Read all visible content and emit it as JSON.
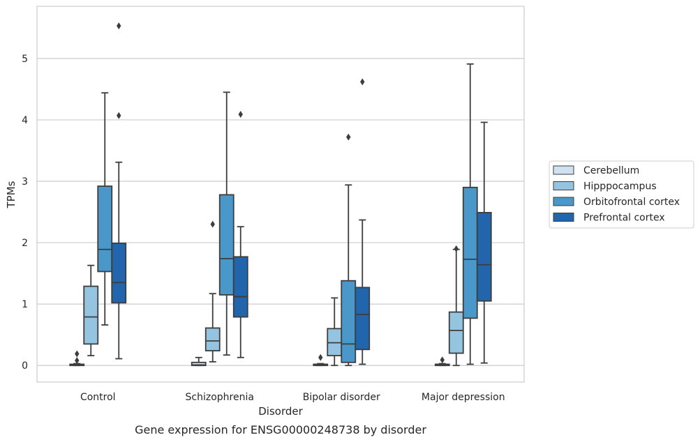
{
  "chart_data": {
    "type": "box",
    "caption": "Gene expression for ENSG00000248738 by disorder",
    "xlabel": "Disorder",
    "ylabel": "TPMs",
    "ylim": [
      -0.27,
      5.85
    ],
    "yticks": [
      0,
      1,
      2,
      3,
      4,
      5
    ],
    "grid": true,
    "legend_position": "right",
    "categories": [
      "Control",
      "Schizophrenia",
      "Bipolar disorder",
      "Major depression"
    ],
    "series": [
      {
        "name": "Cerebellum",
        "color": "#d0e1f2",
        "boxes": [
          {
            "q1": 0.0,
            "median": 0.01,
            "q3": 0.02,
            "whisker_low": 0.0,
            "whisker_high": 0.03,
            "outliers": [
              0.19,
              0.08
            ]
          },
          {
            "q1": 0.0,
            "median": 0.01,
            "q3": 0.05,
            "whisker_low": 0.0,
            "whisker_high": 0.13,
            "outliers": []
          },
          {
            "q1": 0.0,
            "median": 0.01,
            "q3": 0.02,
            "whisker_low": 0.0,
            "whisker_high": 0.03,
            "outliers": [
              0.13
            ]
          },
          {
            "q1": 0.0,
            "median": 0.01,
            "q3": 0.02,
            "whisker_low": 0.0,
            "whisker_high": 0.03,
            "outliers": [
              0.09
            ]
          }
        ]
      },
      {
        "name": "Hipppocampus",
        "color": "#94c4df",
        "boxes": [
          {
            "q1": 0.35,
            "median": 0.79,
            "q3": 1.29,
            "whisker_low": 0.16,
            "whisker_high": 1.63,
            "outliers": []
          },
          {
            "q1": 0.24,
            "median": 0.4,
            "q3": 0.61,
            "whisker_low": 0.06,
            "whisker_high": 1.17,
            "outliers": [
              2.3
            ]
          },
          {
            "q1": 0.16,
            "median": 0.37,
            "q3": 0.6,
            "whisker_low": 0.0,
            "whisker_high": 1.1,
            "outliers": []
          },
          {
            "q1": 0.2,
            "median": 0.57,
            "q3": 0.87,
            "whisker_low": 0.0,
            "whisker_high": 1.89,
            "outliers": [
              1.9
            ]
          }
        ]
      },
      {
        "name": "Orbitofrontal cortex",
        "color": "#4a98c9",
        "boxes": [
          {
            "q1": 1.53,
            "median": 1.89,
            "q3": 2.92,
            "whisker_low": 0.66,
            "whisker_high": 4.44,
            "outliers": []
          },
          {
            "q1": 1.15,
            "median": 1.74,
            "q3": 2.78,
            "whisker_low": 0.17,
            "whisker_high": 4.45,
            "outliers": []
          },
          {
            "q1": 0.05,
            "median": 0.35,
            "q3": 1.38,
            "whisker_low": 0.0,
            "whisker_high": 2.94,
            "outliers": [
              3.72
            ]
          },
          {
            "q1": 0.77,
            "median": 1.73,
            "q3": 2.9,
            "whisker_low": 0.02,
            "whisker_high": 4.91,
            "outliers": []
          }
        ]
      },
      {
        "name": "Prefrontal cortex",
        "color": "#2166ac",
        "boxes": [
          {
            "q1": 1.02,
            "median": 1.35,
            "q3": 1.99,
            "whisker_low": 0.11,
            "whisker_high": 3.31,
            "outliers": [
              5.53,
              4.07
            ]
          },
          {
            "q1": 0.79,
            "median": 1.12,
            "q3": 1.77,
            "whisker_low": 0.13,
            "whisker_high": 2.26,
            "outliers": [
              4.09
            ]
          },
          {
            "q1": 0.26,
            "median": 0.83,
            "q3": 1.27,
            "whisker_low": 0.02,
            "whisker_high": 2.37,
            "outliers": [
              4.62
            ]
          },
          {
            "q1": 1.05,
            "median": 1.64,
            "q3": 2.49,
            "whisker_low": 0.04,
            "whisker_high": 3.96,
            "outliers": []
          }
        ]
      }
    ]
  }
}
